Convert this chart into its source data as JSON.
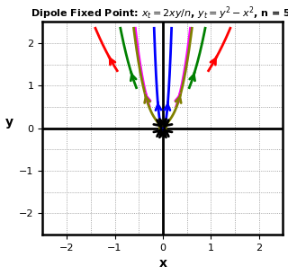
{
  "title_text": "Dipole Fixed Point: $x_t = 2xy/n$, $y_t = y^2 - x^2$, n = 5.",
  "xlabel": "x",
  "ylabel": "y",
  "n": 5,
  "axis_ticks": [
    -2,
    -1,
    0,
    1,
    2
  ],
  "grid_ticks": [
    -2.0,
    -1.5,
    -1.0,
    -0.5,
    0.0,
    0.5,
    1.0,
    1.5,
    2.0
  ],
  "xlim": [
    -2.5,
    2.5
  ],
  "ylim": [
    -2.5,
    2.5
  ],
  "plot_lim": 2.35,
  "colors": {
    "red": "#ff0000",
    "green": "#008000",
    "blue": "#0000ff",
    "magenta": "#ff00ff",
    "olive": "#808000",
    "black": "#000000"
  },
  "lw": 2.0,
  "arrow_ms": 11,
  "figsize": [
    3.2,
    3.06
  ],
  "dpi": 100
}
